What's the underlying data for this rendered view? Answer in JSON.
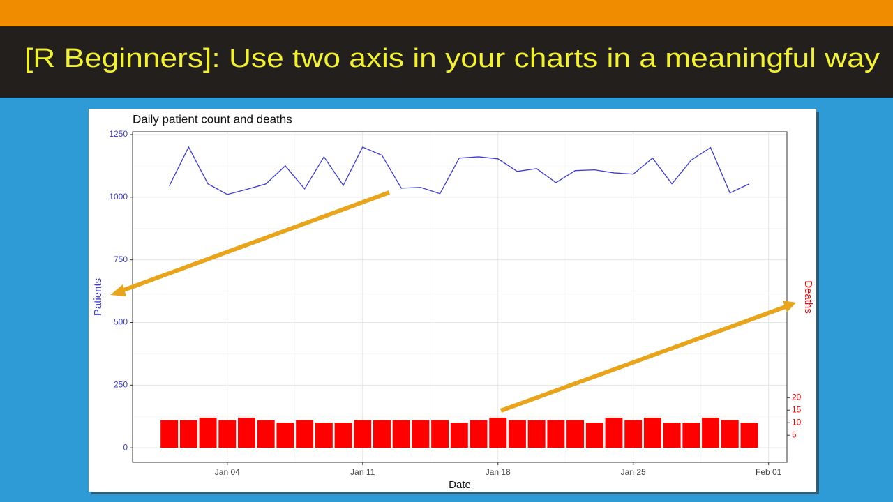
{
  "slide": {
    "title": "[R Beginners]: Use two axis in your charts in a meaningful way"
  },
  "chart_data": {
    "type": "bar-line",
    "title": "Daily patient count and deaths",
    "xlabel": "Date",
    "x": [
      1,
      2,
      3,
      4,
      5,
      6,
      7,
      8,
      9,
      10,
      11,
      12,
      13,
      14,
      15,
      16,
      17,
      18,
      19,
      20,
      21,
      22,
      23,
      24,
      25,
      26,
      27,
      28,
      29,
      30,
      31
    ],
    "xlim": [
      -0.9,
      32.95
    ],
    "xticks": [
      {
        "value": 4,
        "label": "Jan 04"
      },
      {
        "value": 11,
        "label": "Jan 11"
      },
      {
        "value": 18,
        "label": "Jan 18"
      },
      {
        "value": 25,
        "label": "Jan 25"
      },
      {
        "value": 32,
        "label": "Feb 01"
      }
    ],
    "ylim": [
      -58,
      1261
    ],
    "yticks": [
      0,
      250,
      500,
      750,
      1000,
      1250
    ],
    "y2lim": [
      -5.8,
      126.1
    ],
    "y2ticks": [
      5,
      10,
      15,
      20
    ],
    "grid": true,
    "series": [
      {
        "name": "Patients",
        "type": "line",
        "color": "#3b3bd6",
        "values": [
          1045,
          1200,
          1053,
          1011,
          1031,
          1053,
          1125,
          1033,
          1161,
          1047,
          1200,
          1167,
          1036,
          1039,
          1014,
          1156,
          1161,
          1153,
          1103,
          1114,
          1058,
          1106,
          1109,
          1097,
          1092,
          1156,
          1053,
          1148,
          1198,
          1017,
          1053
        ]
      },
      {
        "name": "Deaths",
        "type": "bar",
        "axis": "y2",
        "color": "#ff0000",
        "values": [
          11,
          11,
          12,
          11,
          12,
          11,
          10,
          11,
          10,
          10,
          11,
          11,
          11,
          11,
          11,
          10,
          11,
          12,
          11,
          11,
          11,
          11,
          10,
          12,
          11,
          12,
          10,
          10,
          12,
          11,
          10
        ]
      }
    ]
  }
}
